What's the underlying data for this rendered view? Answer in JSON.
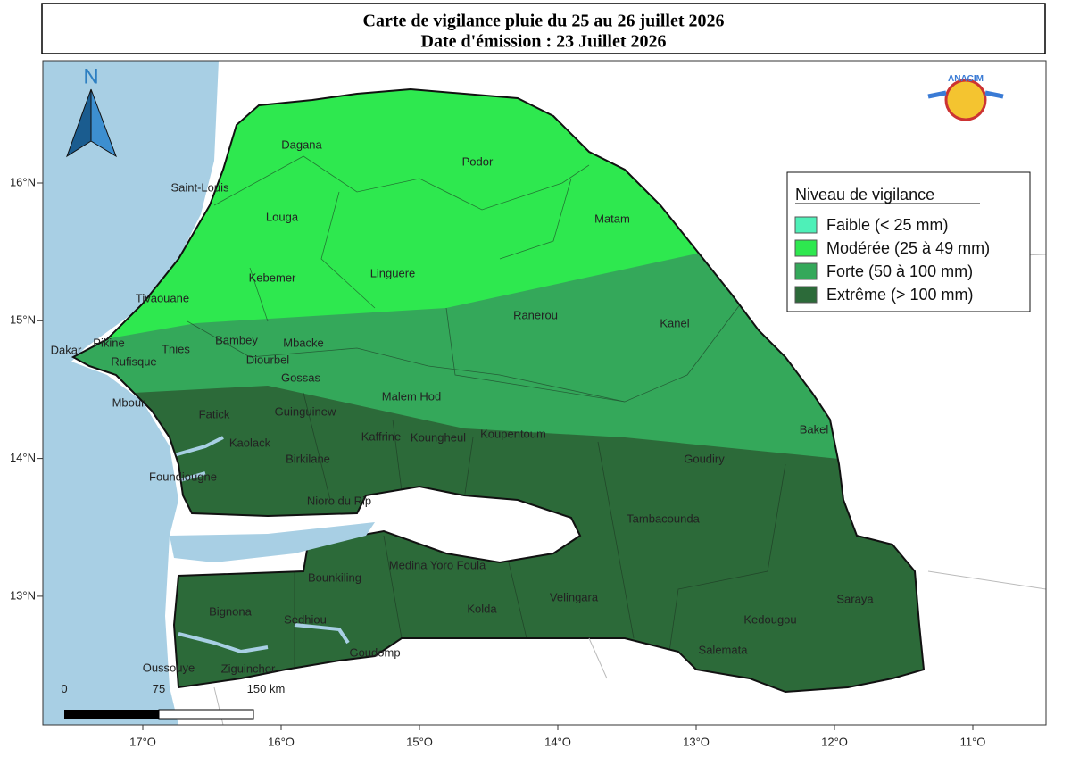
{
  "header": {
    "title": "Carte de vigilance pluie du 25 au 26 juillet 2026",
    "subtitle": "Date d'émission : 23 Juillet 2026"
  },
  "map": {
    "north": "N",
    "logo": "ANACIM",
    "lat_labels": [
      "16°N",
      "15°N",
      "14°N",
      "13°N"
    ],
    "lon_labels": [
      "17°O",
      "16°O",
      "15°O",
      "14°O",
      "13°O",
      "12°O",
      "11°O"
    ],
    "legend": {
      "title": "Niveau de vigilance",
      "items": [
        {
          "label": "Faible (< 25 mm)",
          "color": "#4ef0b8"
        },
        {
          "label": "Modérée (25 à 49 mm)",
          "color": "#2ee84f"
        },
        {
          "label": "Forte (50 à 100 mm)",
          "color": "#34a85a"
        },
        {
          "label": "Extrême (> 100 mm)",
          "color": "#2c6a39"
        }
      ]
    },
    "scale_bar": [
      "0",
      "75",
      "150 km"
    ],
    "places": [
      "Dagana",
      "Saint-Louis",
      "Podor",
      "Louga",
      "Matam",
      "Linguere",
      "Kebemer",
      "Tivaouane",
      "Ranerou",
      "Kanel",
      "Bambey",
      "Mbacke",
      "Dakar",
      "Pikine",
      "Thies",
      "Rufisque",
      "Diourbel",
      "Gossas",
      "Malem Hod",
      "Mbour",
      "Fatick",
      "Guinguinew",
      "Kaffrine",
      "Koungheul",
      "Koupentoum",
      "Bakel",
      "Kaolack",
      "Birkilane",
      "Goudiry",
      "Foundiougne",
      "Nioro du Rip",
      "Tambacounda",
      "Medina Yoro Foula",
      "Bounkiling",
      "Saraya",
      "Velingara",
      "Bignona",
      "Kolda",
      "Sedhiou",
      "Kedougou",
      "Salemata",
      "Goudomp",
      "Oussouye",
      "Ziguinchor"
    ]
  }
}
